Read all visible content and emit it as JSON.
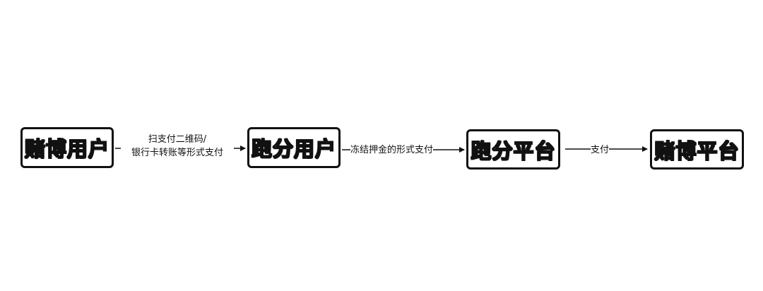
{
  "nodes": {
    "gambling_user": "赌博用户",
    "score_runner_user": "跑分用户",
    "score_running_platform": "跑分平台",
    "gambling_platform": "赌博平台"
  },
  "edges": {
    "user_to_runner": {
      "line1": "扫支付二维码/",
      "line2": "银行卡转账等形式支付"
    },
    "runner_to_platform": "冻结押金的形式支付",
    "platform_to_gambling": "支付"
  }
}
